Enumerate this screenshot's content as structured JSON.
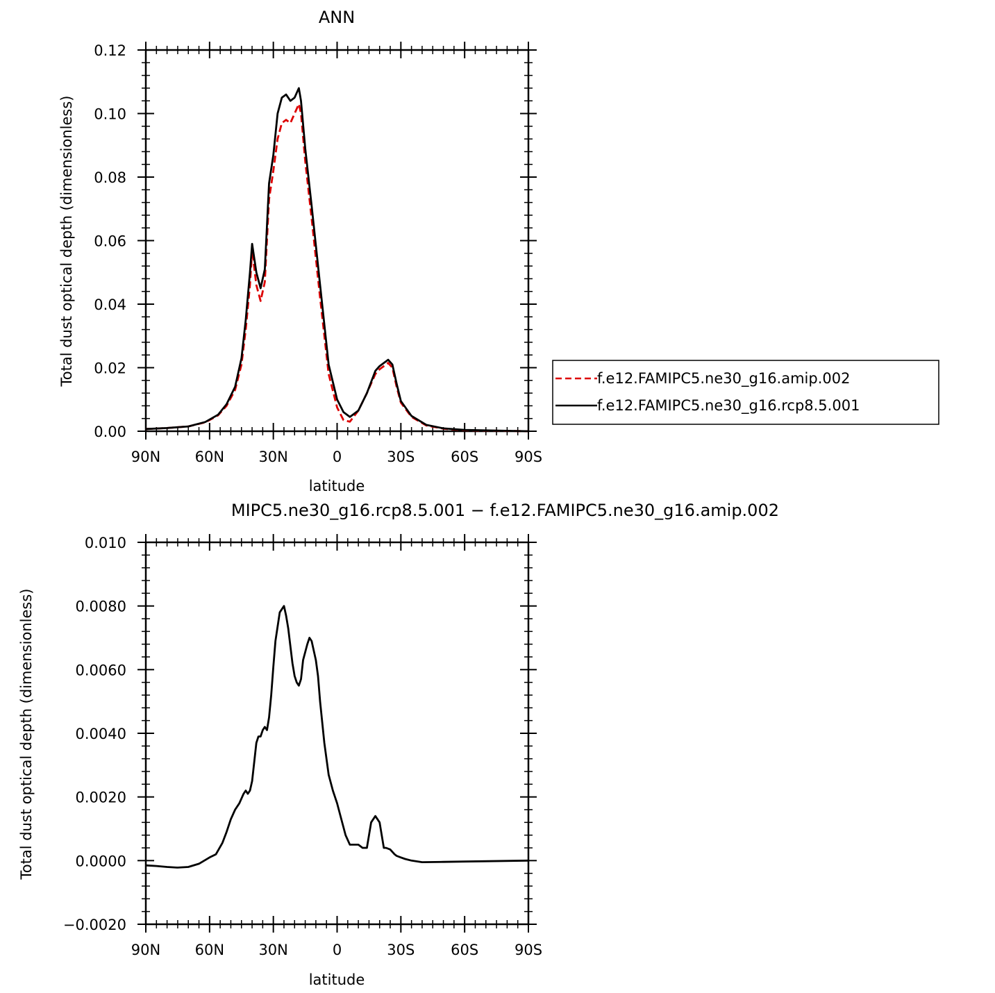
{
  "chart_data": [
    {
      "type": "line",
      "title": "ANN",
      "xlabel": "latitude",
      "ylabel": "Total dust optical depth (dimensionless)",
      "xlim": [
        90,
        -90
      ],
      "ylim": [
        0.0,
        0.12
      ],
      "x_tick_values": [
        90,
        60,
        30,
        0,
        -30,
        -60,
        -90
      ],
      "x_tick_labels": [
        "90N",
        "60N",
        "30N",
        "0",
        "30S",
        "60S",
        "90S"
      ],
      "y_tick_values": [
        0.0,
        0.02,
        0.04,
        0.06,
        0.08,
        0.1,
        0.12
      ],
      "y_tick_labels": [
        "0.00",
        "0.02",
        "0.04",
        "0.06",
        "0.08",
        "0.10",
        "0.12"
      ],
      "legend": {
        "placement": "right-outside"
      },
      "series": [
        {
          "name": "f.e12.FAMIPC5.ne30_g16.amip.002",
          "color": "#dd0000",
          "dash": "dashed",
          "x": [
            90,
            80,
            70,
            62,
            56,
            52,
            48,
            45,
            43,
            41,
            40,
            38,
            36,
            34,
            32,
            30,
            28,
            26,
            24,
            22,
            20,
            18,
            17,
            15,
            12,
            8,
            4,
            0,
            -3,
            -6,
            -10,
            -14,
            -18,
            -20,
            -24,
            -26,
            -28,
            -30,
            -35,
            -42,
            -50,
            -60,
            -90
          ],
          "y": [
            0.0007,
            0.001,
            0.0015,
            0.0028,
            0.005,
            0.008,
            0.013,
            0.021,
            0.032,
            0.046,
            0.057,
            0.046,
            0.041,
            0.047,
            0.073,
            0.082,
            0.092,
            0.097,
            0.098,
            0.097,
            0.1,
            0.103,
            0.1,
            0.085,
            0.067,
            0.042,
            0.018,
            0.0075,
            0.0035,
            0.003,
            0.0065,
            0.012,
            0.018,
            0.0195,
            0.0215,
            0.02,
            0.014,
            0.009,
            0.0045,
            0.0018,
            0.0008,
            0.0003,
            0.0
          ]
        },
        {
          "name": "f.e12.FAMIPC5.ne30_g16.rcp8.5.001",
          "color": "#000000",
          "dash": "solid",
          "x": [
            90,
            80,
            70,
            62,
            56,
            52,
            48,
            45,
            43,
            41,
            40,
            38,
            36,
            34,
            32,
            30,
            28,
            26,
            24,
            22,
            20,
            18,
            17,
            15,
            12,
            8,
            4,
            0,
            -3,
            -6,
            -10,
            -14,
            -18,
            -20,
            -24,
            -26,
            -28,
            -30,
            -35,
            -42,
            -50,
            -60,
            -90
          ],
          "y": [
            0.0007,
            0.001,
            0.0015,
            0.0029,
            0.0052,
            0.0085,
            0.014,
            0.023,
            0.035,
            0.05,
            0.059,
            0.05,
            0.045,
            0.051,
            0.078,
            0.087,
            0.1,
            0.105,
            0.106,
            0.104,
            0.105,
            0.108,
            0.104,
            0.089,
            0.071,
            0.046,
            0.021,
            0.01,
            0.006,
            0.0045,
            0.0065,
            0.012,
            0.019,
            0.0205,
            0.0225,
            0.021,
            0.015,
            0.0095,
            0.0048,
            0.002,
            0.0009,
            0.0004,
            0.0
          ]
        }
      ]
    },
    {
      "type": "line",
      "title": "MIPC5.ne30_g16.rcp8.5.001 − f.e12.FAMIPC5.ne30_g16.amip.002",
      "xlabel": "latitude",
      "ylabel": "Total dust optical depth (dimensionless)",
      "xlim": [
        90,
        -90
      ],
      "ylim": [
        -0.002,
        0.01
      ],
      "x_tick_values": [
        90,
        60,
        30,
        0,
        -30,
        -60,
        -90
      ],
      "x_tick_labels": [
        "90N",
        "60N",
        "30N",
        "0",
        "30S",
        "60S",
        "90S"
      ],
      "y_tick_values": [
        -0.002,
        0.0,
        0.002,
        0.004,
        0.006,
        0.008,
        0.01
      ],
      "y_tick_labels": [
        "−0.0020",
        "0.0000",
        "0.0020",
        "0.0040",
        "0.0060",
        "0.0080",
        "0.010"
      ],
      "series": [
        {
          "color": "#000000",
          "dash": "solid",
          "x": [
            90,
            85,
            80,
            75,
            70,
            65,
            60,
            57,
            54,
            52,
            50,
            48,
            46,
            44,
            43,
            42,
            41,
            40,
            38,
            37,
            36,
            35,
            34,
            33,
            32,
            31,
            30,
            29,
            27,
            25,
            24,
            23,
            21,
            20,
            19,
            18,
            17,
            16,
            14,
            13,
            12,
            10,
            9,
            8,
            6,
            4,
            2,
            0,
            -2,
            -4,
            -6,
            -8,
            -10,
            -12,
            -14,
            -16,
            -18,
            -19,
            -20,
            -22,
            -23,
            -25,
            -27,
            -28,
            -30,
            -32,
            -35,
            -40,
            -50,
            -60,
            -90
          ],
          "y": [
            -0.00015,
            -0.00017,
            -0.0002,
            -0.00022,
            -0.0002,
            -0.0001,
            0.0001,
            0.0002,
            0.00055,
            0.0009,
            0.0013,
            0.0016,
            0.0018,
            0.0021,
            0.0022,
            0.0021,
            0.0022,
            0.0025,
            0.0037,
            0.0039,
            0.0039,
            0.0041,
            0.0042,
            0.0041,
            0.0045,
            0.0052,
            0.0061,
            0.0069,
            0.0078,
            0.008,
            0.0077,
            0.0073,
            0.0062,
            0.0058,
            0.0056,
            0.0055,
            0.0057,
            0.0063,
            0.0068,
            0.007,
            0.0069,
            0.0063,
            0.0058,
            0.005,
            0.0037,
            0.0027,
            0.0022,
            0.0018,
            0.0013,
            0.0008,
            0.0005,
            0.0005,
            0.0005,
            0.0004,
            0.0004,
            0.0012,
            0.0014,
            0.0013,
            0.0012,
            0.0004,
            0.0004,
            0.00035,
            0.0002,
            0.00015,
            0.0001,
            5e-05,
            0.0,
            -5e-05,
            -4e-05,
            -3e-05,
            0.0
          ]
        }
      ]
    }
  ]
}
